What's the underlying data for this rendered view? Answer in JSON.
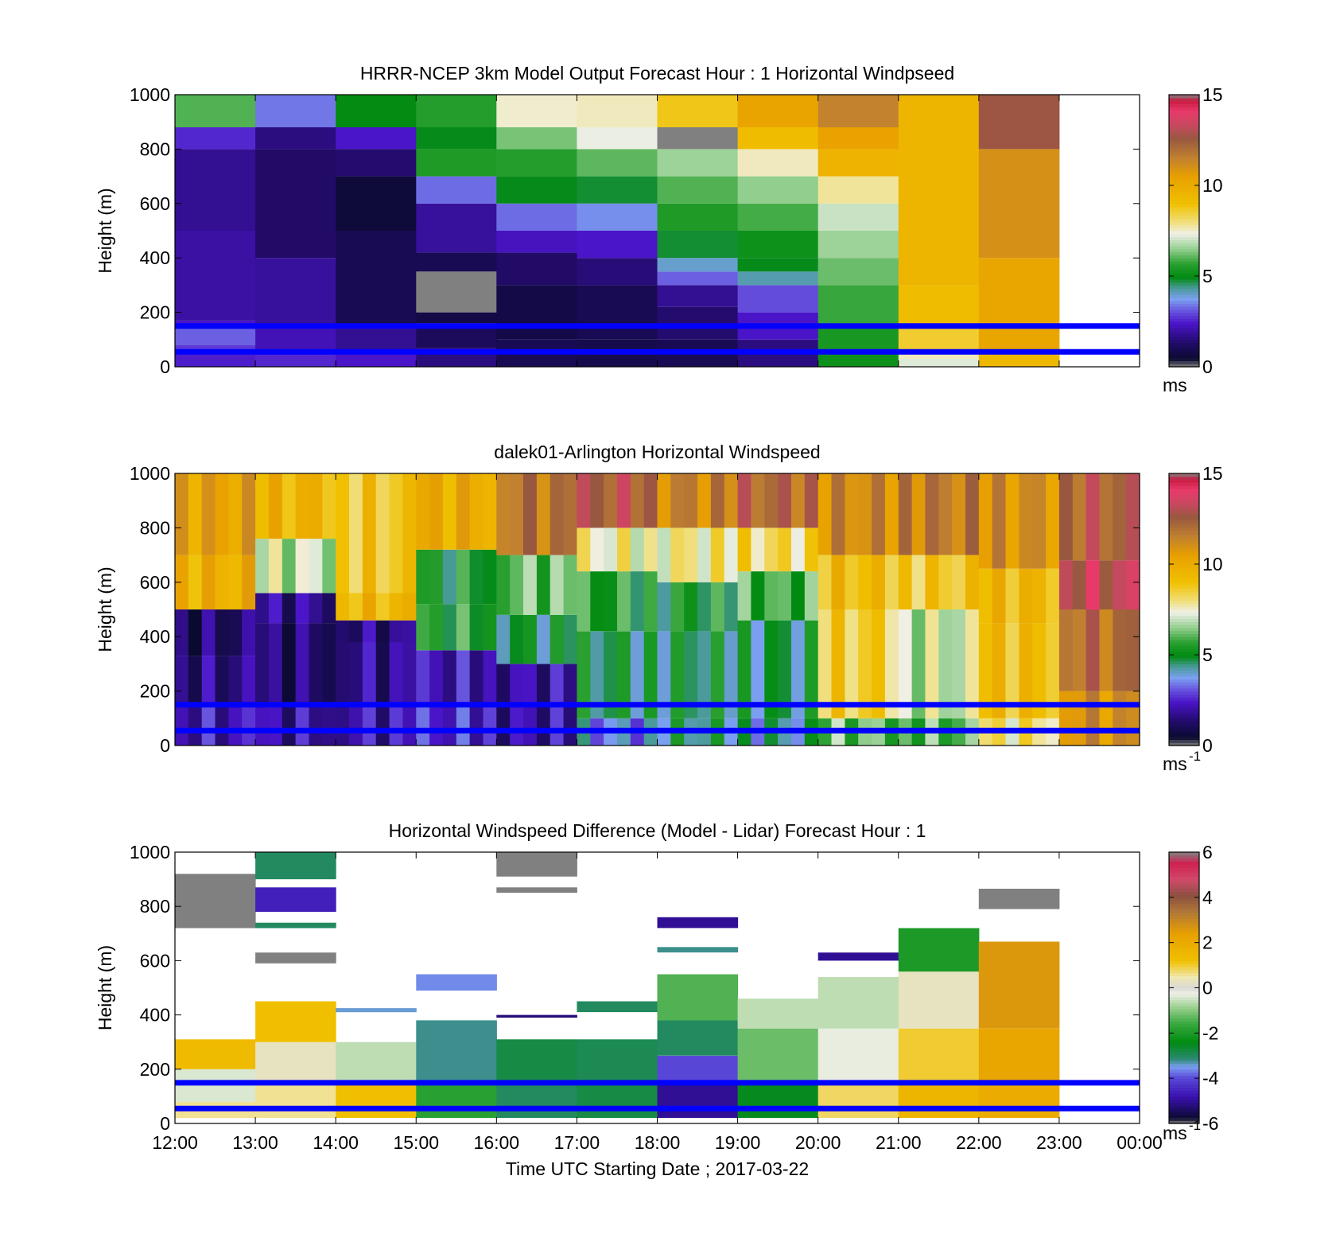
{
  "figure": {
    "xlabel": "Time UTC  Starting Date ; 2017-03-22",
    "x_ticks": [
      "12:00",
      "13:00",
      "14:00",
      "15:00",
      "16:00",
      "17:00",
      "18:00",
      "19:00",
      "20:00",
      "21:00",
      "22:00",
      "23:00",
      "00:00"
    ]
  },
  "chart_data": [
    {
      "type": "heatmap",
      "title": "HRRR-NCEP 3km Model Output   Forecast Hour : 1 Horizontal Windpseed",
      "ylabel": "Height (m)",
      "ylim": [
        0,
        1000
      ],
      "y_ticks": [
        "0",
        "200",
        "400",
        "600",
        "800",
        "1000"
      ],
      "x_range_hours": [
        12,
        24
      ],
      "colorbar": {
        "ticks": [
          "0",
          "5",
          "10",
          "15"
        ],
        "range": [
          0,
          15
        ],
        "unit": "ms",
        "unit_sup": ""
      },
      "reference_lines_m": [
        150,
        55
      ],
      "columns_hours": [
        12,
        13,
        14,
        15,
        16,
        17,
        18,
        19,
        20,
        21,
        22
      ],
      "profiles": [
        [
          [
            0,
            50,
            2.5
          ],
          [
            50,
            80,
            2.8
          ],
          [
            80,
            140,
            3.2
          ],
          [
            140,
            170,
            2.4
          ],
          [
            170,
            500,
            2.0
          ],
          [
            500,
            800,
            1.8
          ],
          [
            800,
            880,
            2.6
          ],
          [
            880,
            1000,
            6.0
          ]
        ],
        [
          [
            0,
            60,
            2.6
          ],
          [
            60,
            140,
            2.2
          ],
          [
            140,
            400,
            1.9
          ],
          [
            400,
            800,
            1.3
          ],
          [
            800,
            880,
            1.6
          ],
          [
            880,
            1000,
            3.4
          ]
        ],
        [
          [
            0,
            60,
            2.4
          ],
          [
            60,
            140,
            1.8
          ],
          [
            140,
            500,
            1.0
          ],
          [
            500,
            700,
            0.6
          ],
          [
            700,
            800,
            1.4
          ],
          [
            800,
            880,
            2.4
          ],
          [
            880,
            1000,
            5.0
          ]
        ],
        [
          [
            0,
            70,
            1.6
          ],
          [
            70,
            160,
            1.1
          ],
          [
            160,
            200,
            0.8
          ],
          [
            200,
            350,
            15.4
          ],
          [
            350,
            420,
            1.0
          ],
          [
            420,
            600,
            1.9
          ],
          [
            600,
            700,
            3.3
          ],
          [
            700,
            800,
            5.5
          ],
          [
            800,
            880,
            4.9
          ],
          [
            880,
            1000,
            5.6
          ]
        ],
        [
          [
            0,
            100,
            1.0
          ],
          [
            100,
            300,
            0.8
          ],
          [
            300,
            420,
            1.3
          ],
          [
            420,
            500,
            2.3
          ],
          [
            500,
            600,
            3.3
          ],
          [
            600,
            700,
            4.9
          ],
          [
            700,
            800,
            5.6
          ],
          [
            800,
            880,
            6.3
          ],
          [
            880,
            1000,
            7.5
          ]
        ],
        [
          [
            0,
            100,
            0.9
          ],
          [
            100,
            300,
            1.0
          ],
          [
            300,
            400,
            1.5
          ],
          [
            400,
            500,
            2.4
          ],
          [
            500,
            600,
            3.6
          ],
          [
            600,
            700,
            4.8
          ],
          [
            700,
            800,
            6.1
          ],
          [
            800,
            880,
            7.3
          ],
          [
            880,
            1000,
            7.6
          ]
        ],
        [
          [
            0,
            100,
            1.0
          ],
          [
            100,
            220,
            1.4
          ],
          [
            220,
            300,
            1.8
          ],
          [
            300,
            350,
            3.2
          ],
          [
            350,
            400,
            4.0
          ],
          [
            400,
            500,
            4.8
          ],
          [
            500,
            600,
            5.5
          ],
          [
            600,
            700,
            6.0
          ],
          [
            700,
            800,
            6.6
          ],
          [
            800,
            880,
            15.4
          ],
          [
            880,
            1000,
            8.8
          ]
        ],
        [
          [
            0,
            100,
            1.6
          ],
          [
            100,
            200,
            2.4
          ],
          [
            200,
            300,
            3.0
          ],
          [
            300,
            350,
            4.2
          ],
          [
            350,
            400,
            4.9
          ],
          [
            400,
            500,
            5.2
          ],
          [
            500,
            600,
            5.9
          ],
          [
            600,
            700,
            6.5
          ],
          [
            700,
            800,
            7.6
          ],
          [
            800,
            880,
            9.2
          ],
          [
            880,
            1000,
            10.3
          ]
        ],
        [
          [
            0,
            60,
            5.2
          ],
          [
            60,
            150,
            5.4
          ],
          [
            150,
            300,
            5.8
          ],
          [
            300,
            400,
            6.2
          ],
          [
            400,
            500,
            6.6
          ],
          [
            500,
            600,
            7.0
          ],
          [
            600,
            700,
            7.8
          ],
          [
            700,
            800,
            9.6
          ],
          [
            800,
            880,
            10.4
          ],
          [
            880,
            1000,
            11.5
          ]
        ],
        [
          [
            0,
            30,
            7.2
          ],
          [
            30,
            60,
            7.6
          ],
          [
            60,
            150,
            8.6
          ],
          [
            150,
            300,
            9.2
          ],
          [
            300,
            1000,
            9.5
          ]
        ],
        [
          [
            0,
            60,
            9.4
          ],
          [
            60,
            400,
            10.2
          ],
          [
            400,
            800,
            11.0
          ],
          [
            800,
            1000,
            12.7
          ]
        ]
      ]
    },
    {
      "type": "heatmap",
      "title": "dalek01-Arlington  Horizontal Windspeed",
      "ylabel": "Height (m)",
      "ylim": [
        0,
        1000
      ],
      "y_ticks": [
        "0",
        "200",
        "400",
        "600",
        "800",
        "1000"
      ],
      "x_range_hours": [
        12,
        24
      ],
      "colorbar": {
        "ticks": [
          "0",
          "5",
          "10",
          "15"
        ],
        "range": [
          0,
          15
        ],
        "unit": "ms",
        "unit_sup": "-1"
      },
      "reference_lines_m": [
        150,
        55
      ],
      "columns_hours": [
        12,
        13,
        14,
        15,
        16,
        17,
        18,
        19,
        20,
        21,
        22,
        23
      ],
      "profiles": [
        [
          [
            0,
            150,
            2.2
          ],
          [
            150,
            330,
            1.6
          ],
          [
            330,
            500,
            1.3
          ],
          [
            500,
            700,
            9.8
          ],
          [
            700,
            1000,
            10.4
          ]
        ],
        [
          [
            0,
            150,
            2.0
          ],
          [
            150,
            450,
            1.4
          ],
          [
            450,
            560,
            1.8
          ],
          [
            560,
            760,
            7.0
          ],
          [
            760,
            1000,
            9.6
          ]
        ],
        [
          [
            0,
            150,
            2.2
          ],
          [
            150,
            380,
            1.8
          ],
          [
            380,
            460,
            1.6
          ],
          [
            460,
            560,
            9.4
          ],
          [
            560,
            1000,
            8.8
          ]
        ],
        [
          [
            0,
            150,
            2.6
          ],
          [
            150,
            350,
            2.2
          ],
          [
            350,
            520,
            5.4
          ],
          [
            520,
            720,
            5.2
          ],
          [
            720,
            1000,
            10.0
          ]
        ],
        [
          [
            0,
            150,
            2.0
          ],
          [
            150,
            300,
            2.0
          ],
          [
            300,
            480,
            4.8
          ],
          [
            480,
            700,
            6.2
          ],
          [
            700,
            1000,
            11.8
          ]
        ],
        [
          [
            0,
            100,
            3.6
          ],
          [
            100,
            420,
            4.8
          ],
          [
            420,
            640,
            5.4
          ],
          [
            640,
            800,
            7.6
          ],
          [
            800,
            1000,
            12.6
          ]
        ],
        [
          [
            0,
            100,
            4.6
          ],
          [
            100,
            420,
            4.8
          ],
          [
            420,
            600,
            5.2
          ],
          [
            600,
            800,
            7.8
          ],
          [
            800,
            1000,
            11.4
          ]
        ],
        [
          [
            0,
            100,
            4.2
          ],
          [
            100,
            460,
            4.6
          ],
          [
            460,
            640,
            5.8
          ],
          [
            640,
            800,
            8.2
          ],
          [
            800,
            1000,
            12.2
          ]
        ],
        [
          [
            0,
            100,
            6.2
          ],
          [
            100,
            500,
            8.6
          ],
          [
            500,
            700,
            9.2
          ],
          [
            700,
            1000,
            11.2
          ]
        ],
        [
          [
            0,
            100,
            6.0
          ],
          [
            100,
            500,
            7.0
          ],
          [
            500,
            700,
            8.8
          ],
          [
            700,
            1000,
            11.6
          ]
        ],
        [
          [
            0,
            100,
            8.0
          ],
          [
            100,
            450,
            9.2
          ],
          [
            450,
            650,
            9.4
          ],
          [
            650,
            1000,
            11.0
          ]
        ],
        [
          [
            0,
            200,
            11.0
          ],
          [
            200,
            500,
            12.0
          ],
          [
            500,
            680,
            13.2
          ],
          [
            680,
            1000,
            12.4
          ]
        ]
      ]
    },
    {
      "type": "heatmap",
      "title": "Horizontal Windspeed Difference (Model - Lidar) Forecast Hour : 1",
      "ylabel": "Height (m)",
      "ylim": [
        0,
        1000
      ],
      "y_ticks": [
        "0",
        "200",
        "400",
        "600",
        "800",
        "1000"
      ],
      "x_range_hours": [
        12,
        24
      ],
      "colorbar": {
        "ticks": [
          "-6",
          "-4",
          "-2",
          "0",
          "2",
          "4",
          "6"
        ],
        "range": [
          -6,
          6
        ],
        "unit": "ms",
        "unit_sup": "-1"
      },
      "reference_lines_m": [
        150,
        55
      ],
      "columns_hours": [
        12,
        13,
        14,
        15,
        16,
        17,
        18,
        19,
        20,
        21,
        22
      ],
      "profiles": [
        [
          [
            20,
            80,
            0.6
          ],
          [
            80,
            200,
            -0.4
          ],
          [
            200,
            310,
            1.4
          ],
          [
            720,
            920,
            6.1
          ]
        ],
        [
          [
            20,
            150,
            0.6
          ],
          [
            150,
            300,
            0.3
          ],
          [
            300,
            450,
            1.2
          ],
          [
            590,
            630,
            6.1
          ],
          [
            720,
            740,
            -3.0
          ],
          [
            780,
            870,
            -4.6
          ],
          [
            900,
            1000,
            -3.0
          ]
        ],
        [
          [
            20,
            150,
            1.2
          ],
          [
            150,
            300,
            -0.6
          ],
          [
            410,
            425,
            -3.4
          ]
        ],
        [
          [
            20,
            150,
            -1.8
          ],
          [
            150,
            380,
            -3.2
          ],
          [
            490,
            550,
            -3.6
          ]
        ],
        [
          [
            20,
            150,
            -3.0
          ],
          [
            150,
            310,
            -2.8
          ],
          [
            390,
            400,
            -5.2
          ],
          [
            850,
            870,
            6.1
          ],
          [
            910,
            1000,
            6.1
          ]
        ],
        [
          [
            20,
            150,
            -2.8
          ],
          [
            150,
            310,
            -2.9
          ],
          [
            410,
            450,
            -3.0
          ]
        ],
        [
          [
            20,
            150,
            -5.0
          ],
          [
            150,
            250,
            -4.0
          ],
          [
            250,
            380,
            -3.0
          ],
          [
            380,
            550,
            -1.4
          ],
          [
            630,
            650,
            -3.2
          ],
          [
            720,
            760,
            -5.0
          ]
        ],
        [
          [
            20,
            150,
            -2.5
          ],
          [
            150,
            350,
            -1.2
          ],
          [
            350,
            460,
            -0.6
          ]
        ],
        [
          [
            20,
            150,
            0.8
          ],
          [
            150,
            350,
            -0.3
          ],
          [
            350,
            540,
            -0.6
          ],
          [
            600,
            630,
            -5.0
          ]
        ],
        [
          [
            20,
            150,
            1.6
          ],
          [
            150,
            350,
            1.0
          ],
          [
            350,
            560,
            0.3
          ],
          [
            560,
            720,
            -2.0
          ]
        ],
        [
          [
            20,
            150,
            2.0
          ],
          [
            150,
            350,
            2.2
          ],
          [
            350,
            670,
            2.6
          ],
          [
            790,
            865,
            6.1
          ]
        ]
      ]
    }
  ]
}
